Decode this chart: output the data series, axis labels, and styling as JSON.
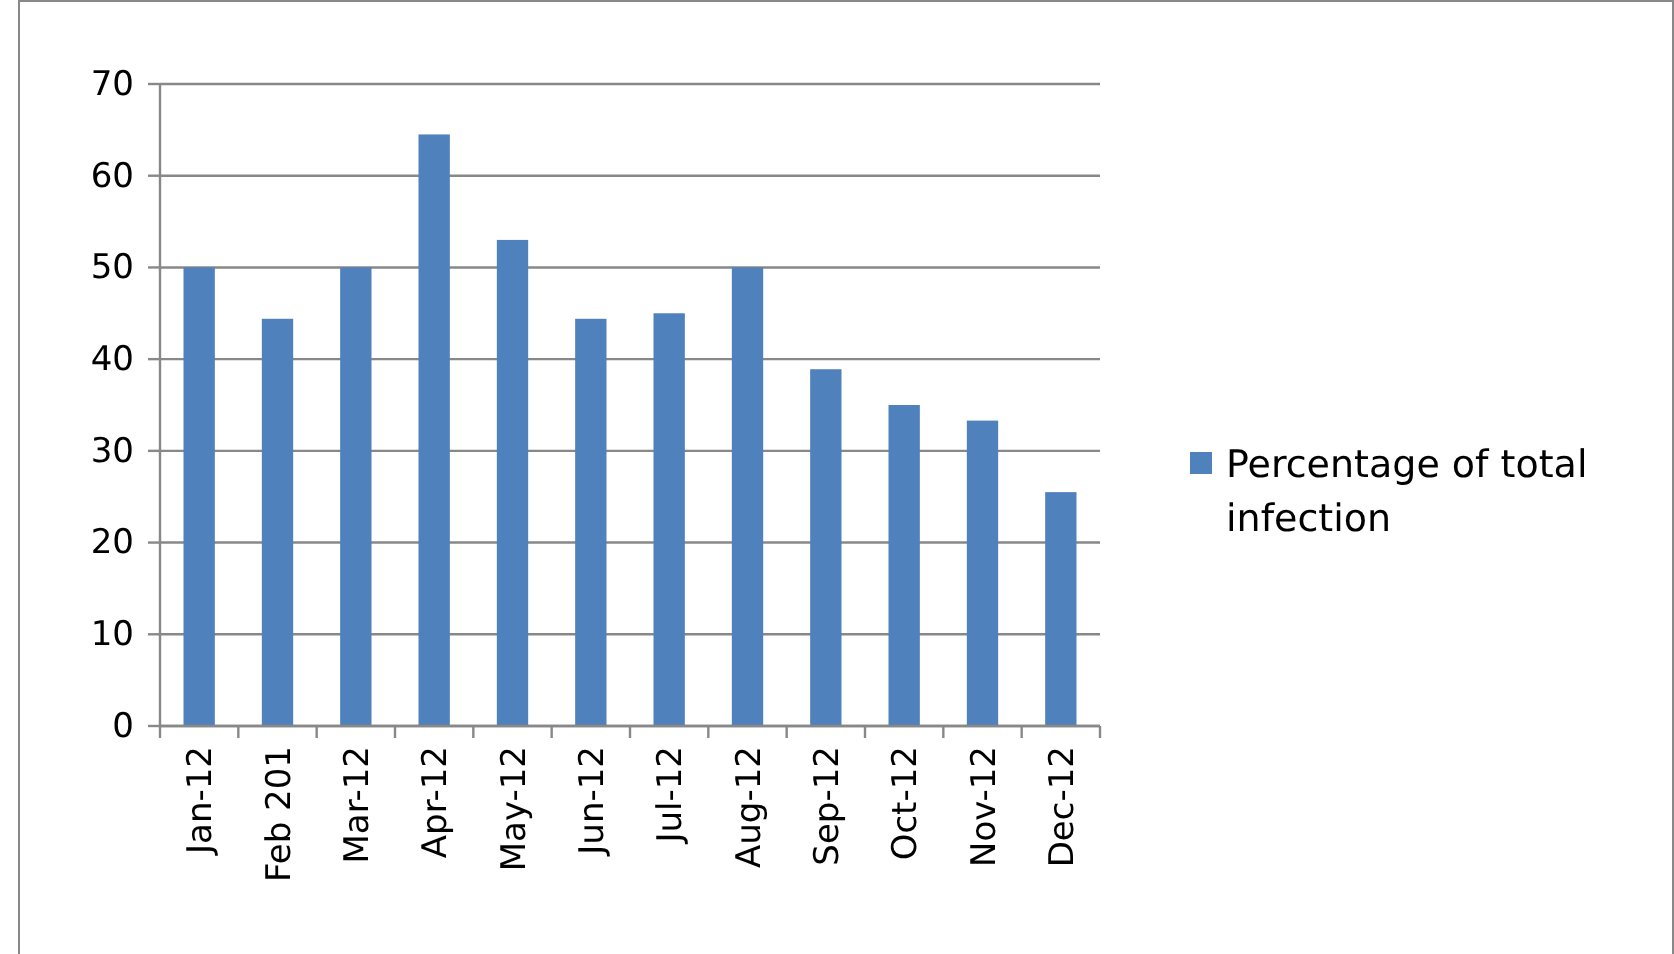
{
  "chart_data": {
    "type": "bar",
    "categories": [
      "Jan-12",
      "Feb 201",
      "Mar-12",
      "Apr-12",
      "May-12",
      "Jun-12",
      "Jul-12",
      "Aug-12",
      "Sep-12",
      "Oct-12",
      "Nov-12",
      "Dec-12"
    ],
    "series": [
      {
        "name": "Percentage of total infection",
        "color": "#4f81bd",
        "values": [
          50,
          44.4,
          50,
          64.5,
          53,
          44.4,
          45,
          50,
          38.9,
          35,
          33.3,
          25.5
        ]
      }
    ],
    "ylim": [
      0,
      70
    ],
    "yticks": [
      0,
      10,
      20,
      30,
      40,
      50,
      60,
      70
    ],
    "grid": "y",
    "legend": "right"
  }
}
